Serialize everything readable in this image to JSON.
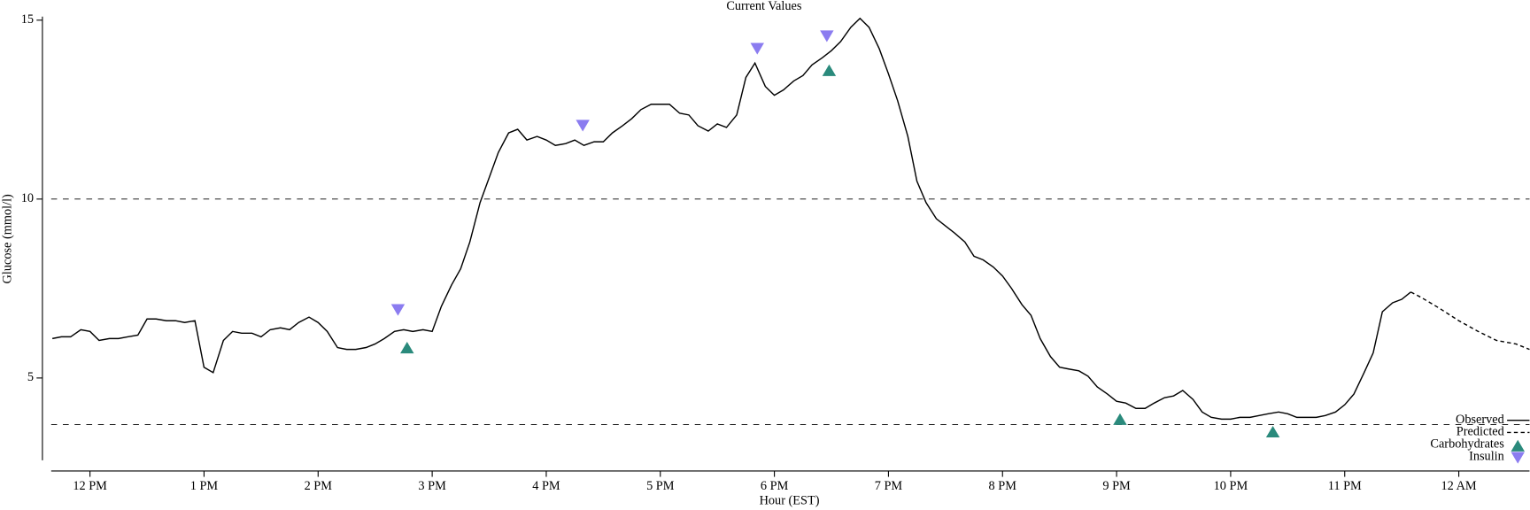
{
  "chart_data": {
    "type": "line",
    "title": "Current Values",
    "x_label": "Hour (EST)",
    "y_label": "Glucose (mmol/l)",
    "xlim": [
      11.66,
      24.62
    ],
    "ylim": [
      2.7,
      15.1
    ],
    "xticks": [
      {
        "value": 12,
        "label": "12 PM"
      },
      {
        "value": 13,
        "label": "1 PM"
      },
      {
        "value": 14,
        "label": "2 PM"
      },
      {
        "value": 15,
        "label": "3 PM"
      },
      {
        "value": 16,
        "label": "4 PM"
      },
      {
        "value": 17,
        "label": "5 PM"
      },
      {
        "value": 18,
        "label": "6 PM"
      },
      {
        "value": 19,
        "label": "7 PM"
      },
      {
        "value": 20,
        "label": "8 PM"
      },
      {
        "value": 21,
        "label": "9 PM"
      },
      {
        "value": 22,
        "label": "10 PM"
      },
      {
        "value": 23,
        "label": "11 PM"
      },
      {
        "value": 24,
        "label": "12 AM"
      }
    ],
    "yticks": [
      5,
      10,
      15
    ],
    "reference_lines": [
      10,
      3.7
    ],
    "legend": "lower right",
    "series": [
      {
        "name": "Observed",
        "color": "#000000",
        "style": "solid",
        "x": [
          11.67,
          11.75,
          11.83,
          11.92,
          12.0,
          12.08,
          12.17,
          12.25,
          12.33,
          12.42,
          12.5,
          12.58,
          12.67,
          12.75,
          12.83,
          12.92,
          13.0,
          13.08,
          13.17,
          13.25,
          13.33,
          13.42,
          13.5,
          13.58,
          13.67,
          13.75,
          13.83,
          13.92,
          14.0,
          14.08,
          14.17,
          14.25,
          14.33,
          14.42,
          14.5,
          14.58,
          14.67,
          14.75,
          14.83,
          14.92,
          15.0,
          15.08,
          15.17,
          15.25,
          15.33,
          15.42,
          15.5,
          15.58,
          15.67,
          15.75,
          15.83,
          15.92,
          16.0,
          16.08,
          16.17,
          16.25,
          16.33,
          16.42,
          16.5,
          16.58,
          16.67,
          16.75,
          16.83,
          16.92,
          17.0,
          17.08,
          17.17,
          17.25,
          17.33,
          17.42,
          17.5,
          17.58,
          17.67,
          17.75,
          17.83,
          17.92,
          18.0,
          18.08,
          18.17,
          18.25,
          18.33,
          18.42,
          18.5,
          18.58,
          18.67,
          18.75,
          18.83,
          18.92,
          19.0,
          19.08,
          19.17,
          19.25,
          19.33,
          19.42,
          19.5,
          19.58,
          19.67,
          19.75,
          19.83,
          19.92,
          20.0,
          20.08,
          20.17,
          20.25,
          20.33,
          20.42,
          20.5,
          20.58,
          20.67,
          20.75,
          20.83,
          20.92,
          21.0,
          21.08,
          21.17,
          21.25,
          21.33,
          21.42,
          21.5,
          21.58,
          21.67,
          21.75,
          21.83,
          21.92,
          22.0,
          22.08,
          22.17,
          22.25,
          22.33,
          22.42,
          22.5,
          22.58,
          22.67,
          22.75,
          22.83,
          22.92,
          23.0,
          23.08,
          23.17,
          23.25,
          23.33,
          23.42,
          23.5,
          23.58
        ],
        "values": [
          6.1,
          6.15,
          6.15,
          6.35,
          6.3,
          6.05,
          6.1,
          6.1,
          6.15,
          6.2,
          6.65,
          6.65,
          6.6,
          6.6,
          6.55,
          6.6,
          5.3,
          5.15,
          6.05,
          6.3,
          6.25,
          6.25,
          6.15,
          6.35,
          6.4,
          6.35,
          6.55,
          6.7,
          6.55,
          6.3,
          5.85,
          5.8,
          5.8,
          5.85,
          5.95,
          6.1,
          6.3,
          6.35,
          6.3,
          6.35,
          6.3,
          7.0,
          7.6,
          8.05,
          8.8,
          9.9,
          10.6,
          11.3,
          11.85,
          11.95,
          11.65,
          11.75,
          11.65,
          11.5,
          11.55,
          11.65,
          11.5,
          11.6,
          11.6,
          11.85,
          12.05,
          12.25,
          12.5,
          12.65,
          12.65,
          12.65,
          12.4,
          12.35,
          12.05,
          11.9,
          12.1,
          12.0,
          12.35,
          13.4,
          13.8,
          13.15,
          12.9,
          13.05,
          13.3,
          13.45,
          13.75,
          13.95,
          14.15,
          14.4,
          14.8,
          15.05,
          14.8,
          14.2,
          13.5,
          12.75,
          11.75,
          10.5,
          9.9,
          9.45,
          9.25,
          9.05,
          8.8,
          8.4,
          8.3,
          8.1,
          7.85,
          7.5,
          7.05,
          6.75,
          6.1,
          5.6,
          5.3,
          5.25,
          5.2,
          5.05,
          4.75,
          4.55,
          4.35,
          4.3,
          4.15,
          4.15,
          4.3,
          4.45,
          4.5,
          4.65,
          4.4,
          4.05,
          3.9,
          3.85,
          3.85,
          3.9,
          3.9,
          3.95,
          4.0,
          4.05,
          4.0,
          3.9,
          3.9,
          3.9,
          3.95,
          4.05,
          4.25,
          4.55,
          5.15,
          5.7,
          6.85,
          7.1,
          7.2,
          7.4
        ]
      },
      {
        "name": "Predicted",
        "color": "#000000",
        "style": "dashed",
        "x": [
          23.58,
          23.67,
          23.83,
          24.0,
          24.17,
          24.33,
          24.5,
          24.62
        ],
        "values": [
          7.4,
          7.25,
          6.95,
          6.6,
          6.3,
          6.05,
          5.95,
          5.8
        ]
      },
      {
        "name": "Carbohydrates",
        "color": "#2a8a7c",
        "marker": "triangle-up",
        "x": [
          14.78,
          18.48,
          21.03,
          22.37
        ],
        "values": [
          5.85,
          13.6,
          3.85,
          3.5
        ]
      },
      {
        "name": "Insulin",
        "color": "#8b7cf0",
        "marker": "triangle-down",
        "x": [
          14.7,
          16.32,
          17.85,
          18.46
        ],
        "values": [
          6.9,
          12.05,
          14.2,
          14.55
        ]
      }
    ]
  }
}
